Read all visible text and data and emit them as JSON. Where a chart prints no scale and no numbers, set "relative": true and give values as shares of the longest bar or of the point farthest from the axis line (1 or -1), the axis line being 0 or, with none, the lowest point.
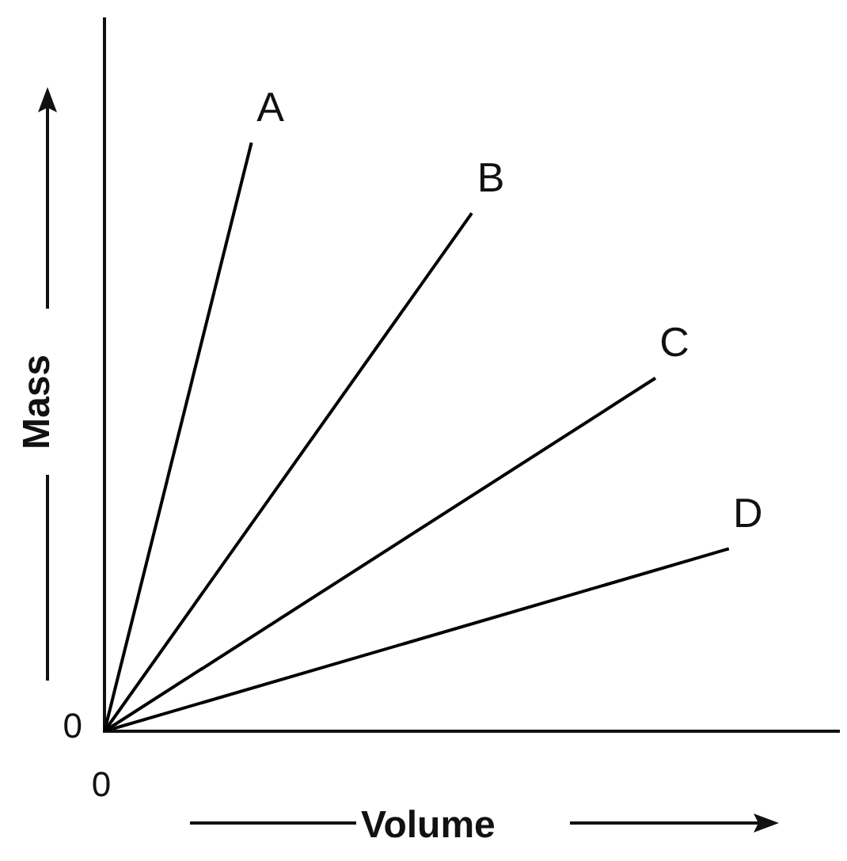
{
  "chart_data": {
    "type": "line",
    "relative": true,
    "xlabel": "Volume",
    "ylabel": "Mass",
    "legend": false,
    "grid": false,
    "marker": "none",
    "annotations": [
      "0",
      "0"
    ],
    "categories": [
      null,
      null,
      null,
      null,
      null,
      null,
      null,
      null,
      null,
      null,
      null,
      null,
      null,
      null,
      null,
      null,
      null,
      null,
      null,
      null,
      null
    ],
    "series": [
      {
        "name": "A",
        "color": "#000000",
        "values": [
          0,
          null,
          null,
          null,
          1,
          null,
          null,
          null,
          null,
          null,
          null,
          null,
          null,
          null,
          null,
          null,
          null,
          null,
          null,
          null,
          null
        ]
      },
      {
        "name": "B",
        "color": "#000000",
        "values": [
          0,
          null,
          null,
          null,
          null,
          null,
          null,
          null,
          null,
          null,
          0.88,
          null,
          null,
          null,
          null,
          null,
          null,
          null,
          null,
          null,
          null
        ]
      },
      {
        "name": "C",
        "color": "#000000",
        "values": [
          0,
          null,
          null,
          null,
          null,
          null,
          null,
          null,
          null,
          null,
          null,
          null,
          null,
          null,
          null,
          0.6,
          null,
          null,
          null,
          null,
          null
        ]
      },
      {
        "name": "D",
        "color": "#000000",
        "values": [
          0,
          null,
          null,
          null,
          null,
          null,
          null,
          null,
          null,
          null,
          null,
          null,
          null,
          null,
          null,
          null,
          null,
          0.31,
          null,
          null,
          null
        ]
      }
    ]
  }
}
